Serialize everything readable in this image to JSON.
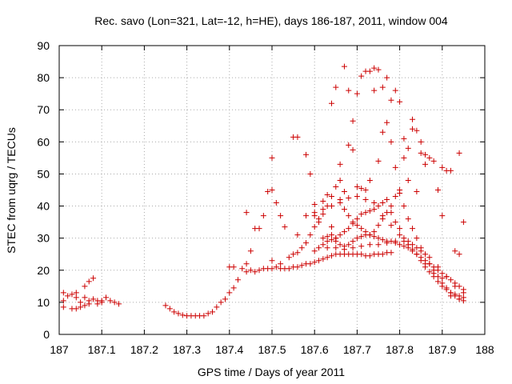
{
  "chart_data": {
    "type": "scatter",
    "title": "Rec. savo (Lon=321, Lat=-12, h=HE), days 186-187, 2011, window 004",
    "xlabel": "GPS time / Days of year 2011",
    "ylabel": "STEC from uqrg / TECUs",
    "xlim": [
      187,
      188
    ],
    "ylim": [
      0,
      90
    ],
    "xticks": [
      "187",
      "187.1",
      "187.2",
      "187.3",
      "187.4",
      "187.5",
      "187.6",
      "187.7",
      "187.8",
      "187.9",
      "188"
    ],
    "yticks": [
      "0",
      "10",
      "20",
      "30",
      "40",
      "50",
      "60",
      "70",
      "80",
      "90"
    ],
    "xtick_values": [
      187,
      187.1,
      187.2,
      187.3,
      187.4,
      187.5,
      187.6,
      187.7,
      187.8,
      187.9,
      188
    ],
    "ytick_values": [
      0,
      10,
      20,
      30,
      40,
      50,
      60,
      70,
      80,
      90
    ],
    "grid": true,
    "marker": "+",
    "color": "#cc0000",
    "series": [
      {
        "points": [
          [
            187.01,
            13
          ],
          [
            187.01,
            10.5
          ],
          [
            187.01,
            8.5
          ],
          [
            187.02,
            12
          ],
          [
            187.03,
            12.5
          ],
          [
            187.03,
            8
          ],
          [
            187.04,
            13
          ],
          [
            187.04,
            11.5
          ],
          [
            187.04,
            8
          ],
          [
            187.05,
            10
          ],
          [
            187.05,
            8.5
          ],
          [
            187.06,
            11.5
          ],
          [
            187.06,
            15
          ],
          [
            187.06,
            9
          ],
          [
            187.07,
            16.5
          ],
          [
            187.07,
            10.5
          ],
          [
            187.07,
            9.5
          ],
          [
            187.08,
            11
          ],
          [
            187.08,
            17.5
          ],
          [
            187.09,
            10.5
          ],
          [
            187.09,
            9.5
          ],
          [
            187.1,
            10.5
          ],
          [
            187.1,
            10
          ],
          [
            187.11,
            11.5
          ],
          [
            187.12,
            10.5
          ],
          [
            187.13,
            10
          ],
          [
            187.14,
            9.5
          ],
          [
            187.25,
            9
          ],
          [
            187.26,
            8
          ],
          [
            187.27,
            7
          ],
          [
            187.28,
            6.5
          ],
          [
            187.29,
            6
          ],
          [
            187.3,
            5.8
          ],
          [
            187.31,
            5.8
          ],
          [
            187.32,
            5.8
          ],
          [
            187.33,
            5.8
          ],
          [
            187.34,
            5.8
          ],
          [
            187.35,
            6.5
          ],
          [
            187.36,
            7
          ],
          [
            187.37,
            8.5
          ],
          [
            187.38,
            10
          ],
          [
            187.39,
            11
          ],
          [
            187.4,
            13
          ],
          [
            187.41,
            14.5
          ],
          [
            187.42,
            17
          ],
          [
            187.4,
            21
          ],
          [
            187.41,
            21
          ],
          [
            187.43,
            20.5
          ],
          [
            187.44,
            19.5
          ],
          [
            187.45,
            20
          ],
          [
            187.46,
            19.5
          ],
          [
            187.47,
            20
          ],
          [
            187.48,
            20.5
          ],
          [
            187.49,
            20.5
          ],
          [
            187.5,
            20.5
          ],
          [
            187.51,
            21
          ],
          [
            187.52,
            20.5
          ],
          [
            187.53,
            20.5
          ],
          [
            187.54,
            20.5
          ],
          [
            187.55,
            21
          ],
          [
            187.56,
            21
          ],
          [
            187.57,
            21.5
          ],
          [
            187.58,
            22
          ],
          [
            187.59,
            22
          ],
          [
            187.6,
            22.5
          ],
          [
            187.61,
            23
          ],
          [
            187.62,
            23.5
          ],
          [
            187.63,
            24
          ],
          [
            187.64,
            24.5
          ],
          [
            187.65,
            25
          ],
          [
            187.66,
            25
          ],
          [
            187.67,
            25
          ],
          [
            187.68,
            25
          ],
          [
            187.69,
            25
          ],
          [
            187.7,
            25
          ],
          [
            187.71,
            25
          ],
          [
            187.72,
            24.5
          ],
          [
            187.73,
            24.5
          ],
          [
            187.74,
            25
          ],
          [
            187.75,
            25
          ],
          [
            187.76,
            25
          ],
          [
            187.77,
            25.5
          ],
          [
            187.78,
            25.5
          ],
          [
            187.44,
            22
          ],
          [
            187.45,
            26
          ],
          [
            187.46,
            33
          ],
          [
            187.47,
            33
          ],
          [
            187.48,
            37
          ],
          [
            187.49,
            44.5
          ],
          [
            187.5,
            45
          ],
          [
            187.5,
            55
          ],
          [
            187.51,
            41
          ],
          [
            187.52,
            37
          ],
          [
            187.53,
            33.5
          ],
          [
            187.55,
            61.5
          ],
          [
            187.56,
            61.5
          ],
          [
            187.56,
            31
          ],
          [
            187.58,
            56
          ],
          [
            187.59,
            50
          ],
          [
            187.6,
            40.5
          ],
          [
            187.6,
            37
          ],
          [
            187.61,
            36
          ],
          [
            187.62,
            41.5
          ],
          [
            187.63,
            43.5
          ],
          [
            187.64,
            72
          ],
          [
            187.64,
            33.5
          ],
          [
            187.65,
            77
          ],
          [
            187.65,
            30
          ],
          [
            187.66,
            48
          ],
          [
            187.66,
            53
          ],
          [
            187.67,
            83.5
          ],
          [
            187.67,
            44.5
          ],
          [
            187.68,
            76
          ],
          [
            187.68,
            59
          ],
          [
            187.69,
            66.5
          ],
          [
            187.69,
            57.5
          ],
          [
            187.7,
            75
          ],
          [
            187.7,
            46
          ],
          [
            187.71,
            80.5
          ],
          [
            187.71,
            45.5
          ],
          [
            187.72,
            82
          ],
          [
            187.72,
            45
          ],
          [
            187.73,
            82
          ],
          [
            187.73,
            48
          ],
          [
            187.74,
            83
          ],
          [
            187.74,
            76
          ],
          [
            187.75,
            82.5
          ],
          [
            187.75,
            54
          ],
          [
            187.76,
            77
          ],
          [
            187.76,
            63
          ],
          [
            187.77,
            80
          ],
          [
            187.77,
            66
          ],
          [
            187.78,
            73
          ],
          [
            187.78,
            60
          ],
          [
            187.79,
            76
          ],
          [
            187.79,
            52
          ],
          [
            187.8,
            72.5
          ],
          [
            187.8,
            45
          ],
          [
            187.81,
            61
          ],
          [
            187.81,
            55
          ],
          [
            187.82,
            58
          ],
          [
            187.82,
            48
          ],
          [
            187.83,
            67
          ],
          [
            187.83,
            64
          ],
          [
            187.84,
            63.5
          ],
          [
            187.84,
            44.5
          ],
          [
            187.85,
            60
          ],
          [
            187.85,
            56.5
          ],
          [
            187.86,
            56
          ],
          [
            187.86,
            53
          ],
          [
            187.87,
            55
          ],
          [
            187.88,
            54
          ],
          [
            187.89,
            45
          ],
          [
            187.9,
            52
          ],
          [
            187.9,
            37
          ],
          [
            187.91,
            51
          ],
          [
            187.92,
            51
          ],
          [
            187.93,
            26
          ],
          [
            187.94,
            25
          ],
          [
            187.94,
            56.5
          ],
          [
            187.95,
            35
          ],
          [
            187.44,
            38
          ],
          [
            187.5,
            23
          ],
          [
            187.52,
            22
          ],
          [
            187.54,
            24
          ],
          [
            187.55,
            25
          ],
          [
            187.56,
            25.5
          ],
          [
            187.57,
            27
          ],
          [
            187.58,
            28.5
          ],
          [
            187.59,
            31
          ],
          [
            187.6,
            33.5
          ],
          [
            187.61,
            35
          ],
          [
            187.62,
            37.5
          ],
          [
            187.63,
            40
          ],
          [
            187.64,
            43
          ],
          [
            187.65,
            46
          ],
          [
            187.66,
            42
          ],
          [
            187.67,
            39
          ],
          [
            187.68,
            37
          ],
          [
            187.69,
            35
          ],
          [
            187.7,
            34
          ],
          [
            187.71,
            33
          ],
          [
            187.72,
            32
          ],
          [
            187.73,
            31
          ],
          [
            187.74,
            30.5
          ],
          [
            187.75,
            30
          ],
          [
            187.76,
            29.5
          ],
          [
            187.77,
            29
          ],
          [
            187.78,
            29
          ],
          [
            187.79,
            28.5
          ],
          [
            187.8,
            28
          ],
          [
            187.81,
            27.5
          ],
          [
            187.82,
            27
          ],
          [
            187.83,
            26
          ],
          [
            187.84,
            25
          ],
          [
            187.85,
            24
          ],
          [
            187.86,
            23
          ],
          [
            187.87,
            22
          ],
          [
            187.88,
            21
          ],
          [
            187.89,
            20
          ],
          [
            187.9,
            19
          ],
          [
            187.91,
            18
          ],
          [
            187.92,
            17
          ],
          [
            187.93,
            16
          ],
          [
            187.94,
            15
          ],
          [
            187.95,
            14
          ],
          [
            187.6,
            26
          ],
          [
            187.61,
            27
          ],
          [
            187.62,
            28
          ],
          [
            187.63,
            29
          ],
          [
            187.64,
            29.5
          ],
          [
            187.65,
            30
          ],
          [
            187.66,
            31
          ],
          [
            187.67,
            32
          ],
          [
            187.68,
            33
          ],
          [
            187.69,
            34.5
          ],
          [
            187.7,
            36
          ],
          [
            187.71,
            37.5
          ],
          [
            187.72,
            38
          ],
          [
            187.73,
            38.5
          ],
          [
            187.74,
            39
          ],
          [
            187.75,
            40
          ],
          [
            187.76,
            41
          ],
          [
            187.77,
            42
          ],
          [
            187.78,
            38
          ],
          [
            187.79,
            35
          ],
          [
            187.8,
            33
          ],
          [
            187.81,
            30
          ],
          [
            187.82,
            28
          ],
          [
            187.83,
            26.5
          ],
          [
            187.84,
            25
          ],
          [
            187.85,
            23
          ],
          [
            187.86,
            21
          ],
          [
            187.87,
            19.5
          ],
          [
            187.88,
            18
          ],
          [
            187.89,
            16.5
          ],
          [
            187.9,
            15
          ],
          [
            187.91,
            14
          ],
          [
            187.92,
            13
          ],
          [
            187.93,
            12.5
          ],
          [
            187.94,
            12
          ],
          [
            187.95,
            11.5
          ],
          [
            187.62,
            30
          ],
          [
            187.63,
            30.5
          ],
          [
            187.64,
            31
          ],
          [
            187.65,
            29
          ],
          [
            187.66,
            28
          ],
          [
            187.67,
            27.5
          ],
          [
            187.68,
            28
          ],
          [
            187.69,
            29
          ],
          [
            187.7,
            30
          ],
          [
            187.71,
            30.5
          ],
          [
            187.72,
            31
          ],
          [
            187.73,
            31
          ],
          [
            187.74,
            32
          ],
          [
            187.75,
            34
          ],
          [
            187.76,
            36
          ],
          [
            187.77,
            38
          ],
          [
            187.78,
            40
          ],
          [
            187.79,
            43
          ],
          [
            187.8,
            44
          ],
          [
            187.81,
            40
          ],
          [
            187.82,
            36
          ],
          [
            187.83,
            33
          ],
          [
            187.84,
            30
          ],
          [
            187.85,
            27
          ],
          [
            187.86,
            25
          ],
          [
            187.87,
            22
          ],
          [
            187.88,
            20
          ],
          [
            187.89,
            18
          ],
          [
            187.9,
            16
          ],
          [
            187.91,
            14.5
          ],
          [
            187.92,
            13
          ],
          [
            187.93,
            12
          ],
          [
            187.94,
            11
          ],
          [
            187.95,
            10.5
          ],
          [
            187.63,
            27
          ],
          [
            187.65,
            27
          ],
          [
            187.67,
            26.5
          ],
          [
            187.69,
            27
          ],
          [
            187.71,
            27.5
          ],
          [
            187.73,
            28
          ],
          [
            187.75,
            28
          ],
          [
            187.77,
            28.5
          ],
          [
            187.79,
            29
          ],
          [
            187.81,
            29
          ],
          [
            187.83,
            28
          ],
          [
            187.85,
            26
          ],
          [
            187.87,
            24
          ],
          [
            187.89,
            21
          ],
          [
            187.91,
            18
          ],
          [
            187.93,
            15
          ],
          [
            187.95,
            13
          ],
          [
            187.58,
            37
          ],
          [
            187.6,
            38
          ],
          [
            187.62,
            39
          ],
          [
            187.64,
            40
          ],
          [
            187.66,
            41
          ],
          [
            187.68,
            42.5
          ],
          [
            187.7,
            43
          ],
          [
            187.72,
            42
          ],
          [
            187.74,
            41
          ],
          [
            187.76,
            37
          ],
          [
            187.78,
            34
          ],
          [
            187.8,
            31
          ],
          [
            187.82,
            29
          ],
          [
            187.84,
            27
          ],
          [
            187.86,
            22
          ],
          [
            187.88,
            19
          ],
          [
            187.9,
            17.5
          ],
          [
            187.92,
            12
          ],
          [
            187.94,
            11
          ]
        ]
      }
    ]
  }
}
